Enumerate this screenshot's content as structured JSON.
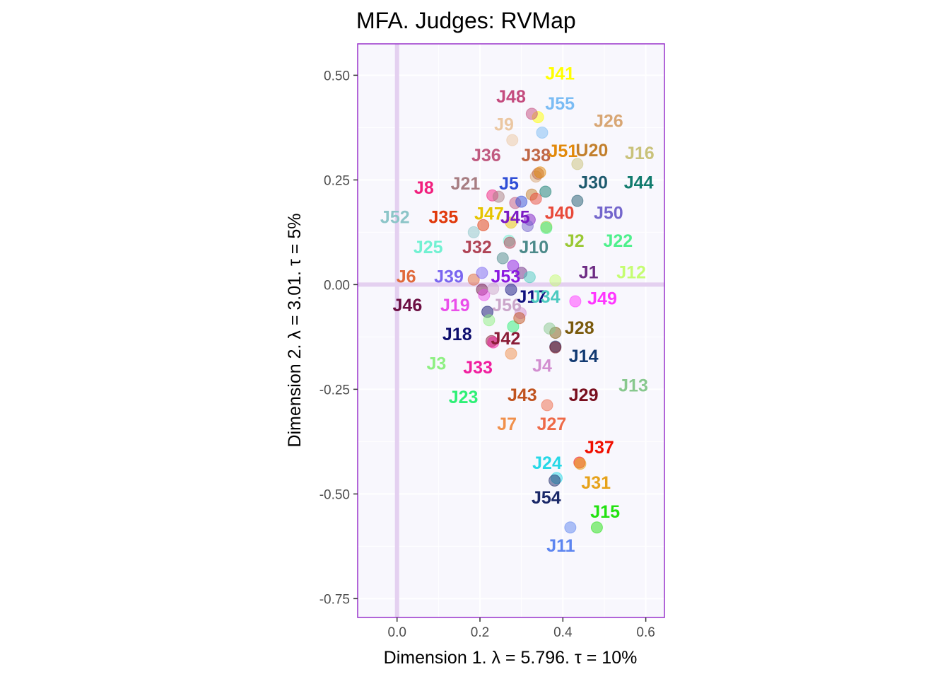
{
  "chart_data": {
    "type": "scatter",
    "title": "MFA. Judges: RVMap",
    "xlabel": "Dimension 1.   λ = 5.796.  τ = 10%",
    "ylabel": "Dimension 2.   λ = 3.01.  τ = 5%",
    "xlim": [
      -0.095,
      0.645
    ],
    "ylim": [
      -0.795,
      0.575
    ],
    "x_ticks": [
      0.0,
      0.2,
      0.4,
      0.6
    ],
    "x_tick_labels": [
      "0.0",
      "0.2",
      "0.4",
      "0.6"
    ],
    "y_ticks": [
      0.5,
      0.25,
      0.0,
      -0.25,
      -0.5,
      -0.75
    ],
    "y_tick_labels": [
      "0.50",
      "0.25",
      "0.00",
      "-0.25",
      "-0.50",
      "-0.75"
    ],
    "grid": true,
    "legend": "none",
    "panel_background": "#f8f7fd",
    "panel_border_color": "#9933cc",
    "origin_line_color": "#e4d0f0",
    "points": [
      {
        "label": "J41",
        "x": 0.34,
        "y": 0.4,
        "color": "#ffff00",
        "lx": 0.393,
        "ly": 0.505
      },
      {
        "label": "J48",
        "x": 0.325,
        "y": 0.408,
        "color": "#c44b7e",
        "lx": 0.275,
        "ly": 0.45
      },
      {
        "label": "J55",
        "x": 0.35,
        "y": 0.363,
        "color": "#7bbcf4",
        "lx": 0.393,
        "ly": 0.433
      },
      {
        "label": "J9",
        "x": 0.278,
        "y": 0.345,
        "color": "#ebc7a2",
        "lx": 0.258,
        "ly": 0.383
      },
      {
        "label": "J26",
        "x": 0.335,
        "y": 0.258,
        "color": "#d8a674",
        "lx": 0.51,
        "ly": 0.392
      },
      {
        "label": "J36",
        "x": 0.285,
        "y": 0.195,
        "color": "#c05a80",
        "lx": 0.215,
        "ly": 0.31
      },
      {
        "label": "J38",
        "x": 0.34,
        "y": 0.265,
        "color": "#c06746",
        "lx": 0.335,
        "ly": 0.31
      },
      {
        "label": "J51",
        "x": 0.345,
        "y": 0.268,
        "color": "#e2890a",
        "lx": 0.4,
        "ly": 0.32
      },
      {
        "label": "U20",
        "x": 0.325,
        "y": 0.215,
        "color": "#c27f2c",
        "lx": 0.47,
        "ly": 0.322
      },
      {
        "label": "J16",
        "x": 0.435,
        "y": 0.288,
        "color": "#c9c27a",
        "lx": 0.585,
        "ly": 0.315
      },
      {
        "label": "J8",
        "x": 0.23,
        "y": 0.213,
        "color": "#f11f7d",
        "lx": 0.065,
        "ly": 0.232
      },
      {
        "label": "J21",
        "x": 0.245,
        "y": 0.21,
        "color": "#a77d82",
        "lx": 0.165,
        "ly": 0.242
      },
      {
        "label": "J5",
        "x": 0.3,
        "y": 0.198,
        "color": "#2f4ed6",
        "lx": 0.27,
        "ly": 0.242
      },
      {
        "label": "J30",
        "x": 0.435,
        "y": 0.2,
        "color": "#1e5a6e",
        "lx": 0.473,
        "ly": 0.245
      },
      {
        "label": "J44",
        "x": 0.358,
        "y": 0.222,
        "color": "#127c6e",
        "lx": 0.583,
        "ly": 0.245
      },
      {
        "label": "J52",
        "x": 0.185,
        "y": 0.125,
        "color": "#8cc5c8",
        "lx": -0.005,
        "ly": 0.162
      },
      {
        "label": "J35",
        "x": 0.208,
        "y": 0.142,
        "color": "#e0380a",
        "lx": 0.112,
        "ly": 0.162
      },
      {
        "label": "J47",
        "x": 0.275,
        "y": 0.148,
        "color": "#e6c400",
        "lx": 0.222,
        "ly": 0.17
      },
      {
        "label": "J45",
        "x": 0.32,
        "y": 0.155,
        "color": "#7b1ac4",
        "lx": 0.285,
        "ly": 0.162
      },
      {
        "label": "J40",
        "x": 0.335,
        "y": 0.205,
        "color": "#e84a3a",
        "lx": 0.392,
        "ly": 0.172
      },
      {
        "label": "J50",
        "x": 0.315,
        "y": 0.14,
        "color": "#7466cc",
        "lx": 0.51,
        "ly": 0.172
      },
      {
        "label": "J25",
        "x": 0.27,
        "y": 0.105,
        "color": "#72f1d2",
        "lx": 0.075,
        "ly": 0.09
      },
      {
        "label": "J32",
        "x": 0.272,
        "y": 0.1,
        "color": "#b04456",
        "lx": 0.193,
        "ly": 0.09
      },
      {
        "label": "J10",
        "x": 0.255,
        "y": 0.063,
        "color": "#4c8a8a",
        "lx": 0.33,
        "ly": 0.09
      },
      {
        "label": "J2",
        "x": 0.36,
        "y": 0.138,
        "color": "#9ac834",
        "lx": 0.428,
        "ly": 0.105
      },
      {
        "label": "J22",
        "x": 0.36,
        "y": 0.135,
        "color": "#4ef08c",
        "lx": 0.533,
        "ly": 0.105
      },
      {
        "label": "J6",
        "x": 0.185,
        "y": 0.012,
        "color": "#e06a3c",
        "lx": 0.022,
        "ly": 0.02
      },
      {
        "label": "J39",
        "x": 0.205,
        "y": 0.028,
        "color": "#7a66f0",
        "lx": 0.125,
        "ly": 0.02
      },
      {
        "label": "J53",
        "x": 0.28,
        "y": 0.045,
        "color": "#8a18e0",
        "lx": 0.262,
        "ly": 0.02
      },
      {
        "label": "J1",
        "x": 0.3,
        "y": 0.028,
        "color": "#6e2c84",
        "lx": 0.462,
        "ly": 0.03
      },
      {
        "label": "J12",
        "x": 0.382,
        "y": 0.01,
        "color": "#c5fd72",
        "lx": 0.565,
        "ly": 0.03
      },
      {
        "label": "J46",
        "x": 0.205,
        "y": -0.012,
        "color": "#6b0e42",
        "lx": 0.025,
        "ly": -0.048
      },
      {
        "label": "J19",
        "x": 0.21,
        "y": -0.025,
        "color": "#ea4eea",
        "lx": 0.14,
        "ly": -0.048
      },
      {
        "label": "J56",
        "x": 0.232,
        "y": -0.01,
        "color": "#cba6ca",
        "lx": 0.265,
        "ly": -0.048
      },
      {
        "label": "J17",
        "x": 0.275,
        "y": -0.012,
        "color": "#10107e",
        "lx": 0.325,
        "ly": -0.028
      },
      {
        "label": "J34",
        "x": 0.32,
        "y": 0.018,
        "color": "#4ccac0",
        "lx": 0.358,
        "ly": -0.028
      },
      {
        "label": "J49",
        "x": 0.43,
        "y": -0.04,
        "color": "#ff36ff",
        "lx": 0.495,
        "ly": -0.032
      },
      {
        "label": "J18",
        "x": 0.218,
        "y": -0.065,
        "color": "#0e0e6e",
        "lx": 0.145,
        "ly": -0.118
      },
      {
        "label": "J42",
        "x": 0.228,
        "y": -0.135,
        "color": "#8a1c36",
        "lx": 0.262,
        "ly": -0.128
      },
      {
        "label": "J28",
        "x": 0.382,
        "y": -0.115,
        "color": "#7a5a0c",
        "lx": 0.44,
        "ly": -0.102
      },
      {
        "label": "J14",
        "x": 0.382,
        "y": -0.148,
        "color": "#123a72",
        "lx": 0.45,
        "ly": -0.17
      },
      {
        "label": "J3",
        "x": 0.222,
        "y": -0.085,
        "color": "#8ef082",
        "lx": 0.095,
        "ly": -0.188
      },
      {
        "label": "J33",
        "x": 0.232,
        "y": -0.138,
        "color": "#f01e9e",
        "lx": 0.195,
        "ly": -0.197
      },
      {
        "label": "J4",
        "x": 0.298,
        "y": -0.068,
        "color": "#d28ed0",
        "lx": 0.35,
        "ly": -0.193
      },
      {
        "label": "J13",
        "x": 0.368,
        "y": -0.105,
        "color": "#88c88e",
        "lx": 0.57,
        "ly": -0.24
      },
      {
        "label": "J23",
        "x": 0.28,
        "y": -0.1,
        "color": "#2ef076",
        "lx": 0.16,
        "ly": -0.268
      },
      {
        "label": "J43",
        "x": 0.295,
        "y": -0.08,
        "color": "#c0521e",
        "lx": 0.302,
        "ly": -0.263
      },
      {
        "label": "J29",
        "x": 0.382,
        "y": -0.15,
        "color": "#780e1e",
        "lx": 0.45,
        "ly": -0.263
      },
      {
        "label": "J7",
        "x": 0.275,
        "y": -0.165,
        "color": "#f0904c",
        "lx": 0.265,
        "ly": -0.332
      },
      {
        "label": "J27",
        "x": 0.362,
        "y": -0.288,
        "color": "#ee6a48",
        "lx": 0.373,
        "ly": -0.332
      },
      {
        "label": "J37",
        "x": 0.44,
        "y": -0.425,
        "color": "#f00f00",
        "lx": 0.488,
        "ly": -0.388
      },
      {
        "label": "J24",
        "x": 0.385,
        "y": -0.462,
        "color": "#26d8e6",
        "lx": 0.362,
        "ly": -0.425
      },
      {
        "label": "J31",
        "x": 0.442,
        "y": -0.428,
        "color": "#e6a21a",
        "lx": 0.48,
        "ly": -0.472
      },
      {
        "label": "J54",
        "x": 0.38,
        "y": -0.468,
        "color": "#1a2868",
        "lx": 0.36,
        "ly": -0.508
      },
      {
        "label": "J15",
        "x": 0.482,
        "y": -0.58,
        "color": "#22e210",
        "lx": 0.502,
        "ly": -0.542
      },
      {
        "label": "J11",
        "x": 0.418,
        "y": -0.58,
        "color": "#5d85f0",
        "lx": 0.395,
        "ly": -0.623
      }
    ]
  }
}
